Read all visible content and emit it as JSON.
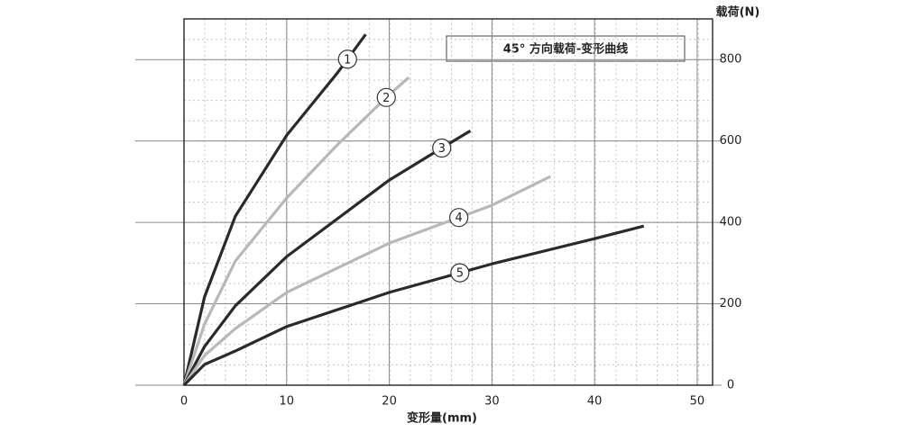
{
  "chart_data": {
    "type": "line",
    "title": "45° 方向载荷-变形曲线",
    "x_label": "变形量(mm)",
    "y_label": "载荷(N)",
    "xlim": [
      0,
      51.5
    ],
    "ylim": [
      0,
      900
    ],
    "xticks": [
      0,
      10,
      20,
      30,
      40,
      50
    ],
    "yticks": [
      0,
      200,
      400,
      600,
      800
    ],
    "grid": true,
    "series": [
      {
        "name": "1",
        "color": "#2a2a2a",
        "x": [
          0,
          2,
          5,
          10,
          15,
          17.7
        ],
        "values": [
          0,
          217,
          415,
          614,
          769,
          862
        ]
      },
      {
        "name": "2",
        "color": "#b8b8b8",
        "x": [
          0,
          2,
          5,
          10,
          15,
          20,
          21.9
        ],
        "values": [
          0,
          150,
          305,
          460,
          592,
          714,
          756
        ]
      },
      {
        "name": "3",
        "color": "#2a2a2a",
        "x": [
          0,
          2,
          5,
          10,
          20,
          25,
          27.9
        ],
        "values": [
          0,
          95,
          195,
          316,
          504,
          581,
          625
        ]
      },
      {
        "name": "4",
        "color": "#b8b8b8",
        "x": [
          0,
          2,
          5,
          10,
          20,
          30,
          35.7
        ],
        "values": [
          0,
          73,
          139,
          228,
          349,
          442,
          513
        ]
      },
      {
        "name": "5",
        "color": "#2a2a2a",
        "x": [
          0,
          2,
          5,
          10,
          20,
          30,
          40,
          44.8
        ],
        "values": [
          0,
          51,
          84,
          144,
          228,
          298,
          360,
          391
        ]
      }
    ]
  }
}
